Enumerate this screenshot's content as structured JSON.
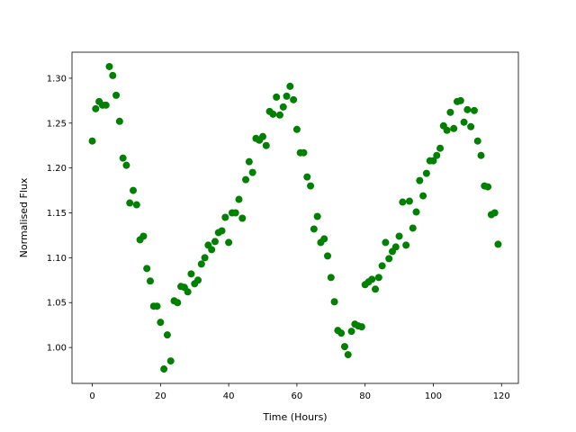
{
  "chart_data": {
    "type": "scatter",
    "x_label": "Time (Hours)",
    "y_label": "Normalised Flux",
    "color": "#008000",
    "x": [
      0,
      1,
      2,
      3,
      4,
      5,
      6,
      7,
      8,
      9,
      10,
      11,
      12,
      13,
      14,
      15,
      16,
      17,
      18,
      19,
      20,
      21,
      22,
      23,
      24,
      25,
      26,
      27,
      28,
      29,
      30,
      31,
      32,
      33,
      34,
      35,
      36,
      37,
      38,
      39,
      40,
      41,
      42,
      43,
      44,
      45,
      46,
      47,
      48,
      49,
      50,
      51,
      52,
      53,
      54,
      55,
      56,
      57,
      58,
      59,
      60,
      61,
      62,
      63,
      64,
      65,
      66,
      67,
      68,
      69,
      70,
      71,
      72,
      73,
      74,
      75,
      76,
      77,
      78,
      79,
      80,
      81,
      82,
      83,
      84,
      85,
      86,
      87,
      88,
      89,
      90,
      91,
      92,
      93,
      94,
      95,
      96,
      97,
      98,
      99,
      100,
      101,
      102,
      103,
      104,
      105,
      106,
      107,
      108,
      109,
      110,
      111,
      112,
      113,
      114,
      115,
      116,
      117,
      118,
      119
    ],
    "values": [
      1.23,
      1.266,
      1.274,
      1.27,
      1.27,
      1.313,
      1.303,
      1.281,
      1.252,
      1.211,
      1.203,
      1.161,
      1.175,
      1.159,
      1.12,
      1.124,
      1.088,
      1.074,
      1.046,
      1.046,
      1.028,
      0.976,
      1.014,
      0.985,
      1.052,
      1.05,
      1.068,
      1.067,
      1.062,
      1.082,
      1.071,
      1.075,
      1.093,
      1.1,
      1.114,
      1.109,
      1.118,
      1.128,
      1.13,
      1.145,
      1.117,
      1.15,
      1.15,
      1.165,
      1.144,
      1.187,
      1.207,
      1.195,
      1.233,
      1.231,
      1.235,
      1.225,
      1.263,
      1.26,
      1.279,
      1.259,
      1.268,
      1.28,
      1.291,
      1.276,
      1.243,
      1.217,
      1.217,
      1.19,
      1.18,
      1.132,
      1.146,
      1.117,
      1.121,
      1.102,
      1.078,
      1.051,
      1.019,
      1.016,
      1.001,
      0.992,
      1.018,
      1.026,
      1.024,
      1.023,
      1.07,
      1.073,
      1.076,
      1.065,
      1.078,
      1.091,
      1.117,
      1.099,
      1.107,
      1.112,
      1.124,
      1.162,
      1.114,
      1.163,
      1.133,
      1.151,
      1.186,
      1.169,
      1.194,
      1.208,
      1.208,
      1.214,
      1.222,
      1.247,
      1.242,
      1.262,
      1.244,
      1.274,
      1.275,
      1.251,
      1.265,
      1.246,
      1.264,
      1.23,
      1.214,
      1.18,
      1.179,
      1.148,
      1.15,
      1.115
    ],
    "xlim": [
      -5.95,
      124.95
    ],
    "ylim": [
      0.96,
      1.329
    ],
    "xticks": [
      0,
      20,
      40,
      60,
      80,
      100,
      120
    ],
    "yticks": [
      {
        "value": 1.0,
        "label": "1.00"
      },
      1.05,
      {
        "value": 1.1,
        "label": "1.10"
      },
      1.15,
      {
        "value": 1.2,
        "label": "1.20"
      },
      1.25,
      {
        "value": 1.3,
        "label": "1.30"
      }
    ]
  }
}
